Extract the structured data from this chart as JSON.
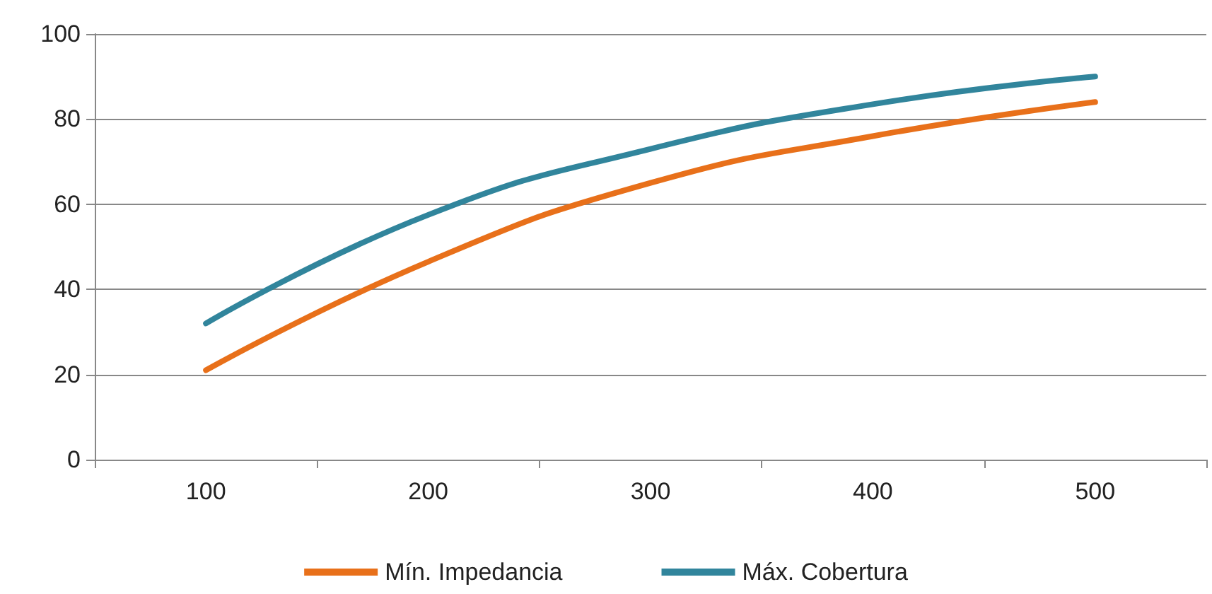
{
  "chart_data": {
    "type": "line",
    "categories": [
      "100",
      "200",
      "300",
      "400",
      "500"
    ],
    "series": [
      {
        "name": "Mín. Impedancia",
        "color": "#e8701a",
        "values": [
          21,
          46.5,
          65,
          76,
          84
        ]
      },
      {
        "name": "Máx. Cobertura",
        "color": "#31859c",
        "values": [
          32,
          57.5,
          73,
          83.5,
          90
        ]
      }
    ],
    "ylim": [
      0,
      100
    ],
    "yticks": [
      0,
      20,
      40,
      60,
      80,
      100
    ],
    "grid": "y",
    "legend": "bottom",
    "marker": "none",
    "line_style": "solid"
  }
}
